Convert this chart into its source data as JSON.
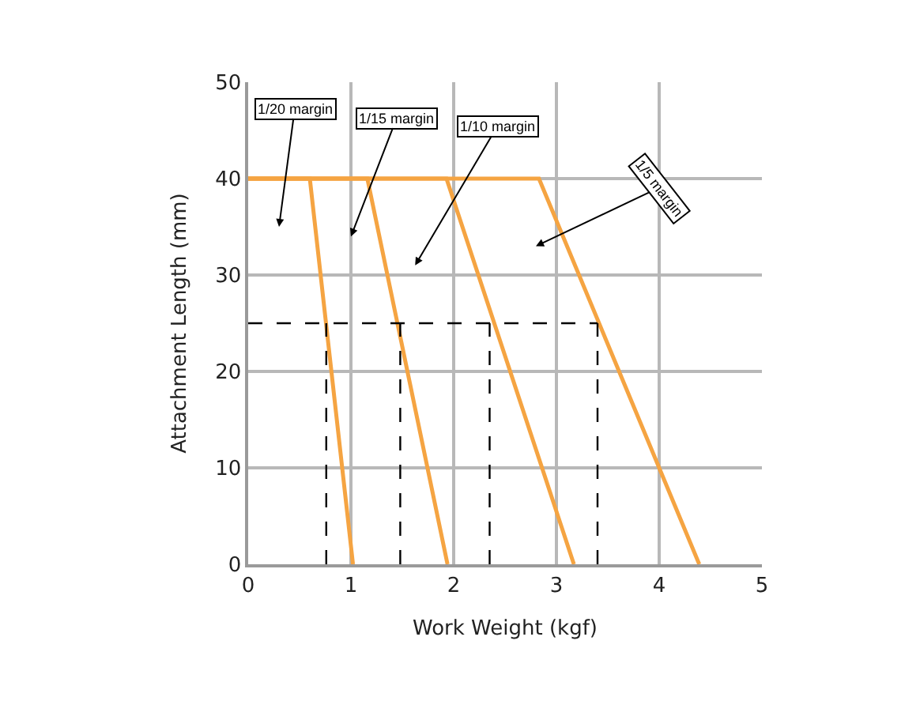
{
  "chart_data": {
    "type": "line",
    "xlabel": "Work Weight (kgf)",
    "ylabel": "Attachment Length (mm)",
    "xlim": [
      0,
      5
    ],
    "xticks": [
      0,
      1,
      2,
      3,
      4,
      5
    ],
    "ylim": [
      0,
      50
    ],
    "yticks": [
      0,
      10,
      20,
      30,
      40,
      50
    ],
    "grid": true,
    "marker": "none",
    "series": [
      {
        "color": "#f5a442",
        "x": [
          0,
          0.6,
          1.02
        ],
        "values": [
          40,
          40,
          0
        ]
      },
      {
        "color": "#f5a442",
        "x": [
          0,
          1.16,
          1.94
        ],
        "values": [
          40,
          40,
          0
        ]
      },
      {
        "color": "#f5a442",
        "x": [
          0,
          1.93,
          3.17
        ],
        "values": [
          40,
          40,
          0
        ]
      },
      {
        "color": "#f5a442",
        "x": [
          0,
          2.83,
          4.39
        ],
        "values": [
          40,
          40,
          0
        ]
      },
      {
        "color": "#000000",
        "line_style": "dashed",
        "x": [
          0,
          3.4
        ],
        "values": [
          25,
          25
        ]
      },
      {
        "color": "#000000",
        "line_style": "dashed",
        "x": [
          0.76,
          0.76
        ],
        "values": [
          0,
          25
        ]
      },
      {
        "color": "#000000",
        "line_style": "dashed",
        "x": [
          1.48,
          1.48
        ],
        "values": [
          0,
          25
        ]
      },
      {
        "color": "#000000",
        "line_style": "dashed",
        "x": [
          2.35,
          2.35
        ],
        "values": [
          0,
          25
        ]
      },
      {
        "color": "#000000",
        "line_style": "dashed",
        "x": [
          3.4,
          3.4
        ],
        "values": [
          0,
          25
        ]
      }
    ],
    "annotations": [
      "1/20 margin",
      "1/15 margin",
      "1/10 margin",
      "1/5 margin"
    ]
  }
}
